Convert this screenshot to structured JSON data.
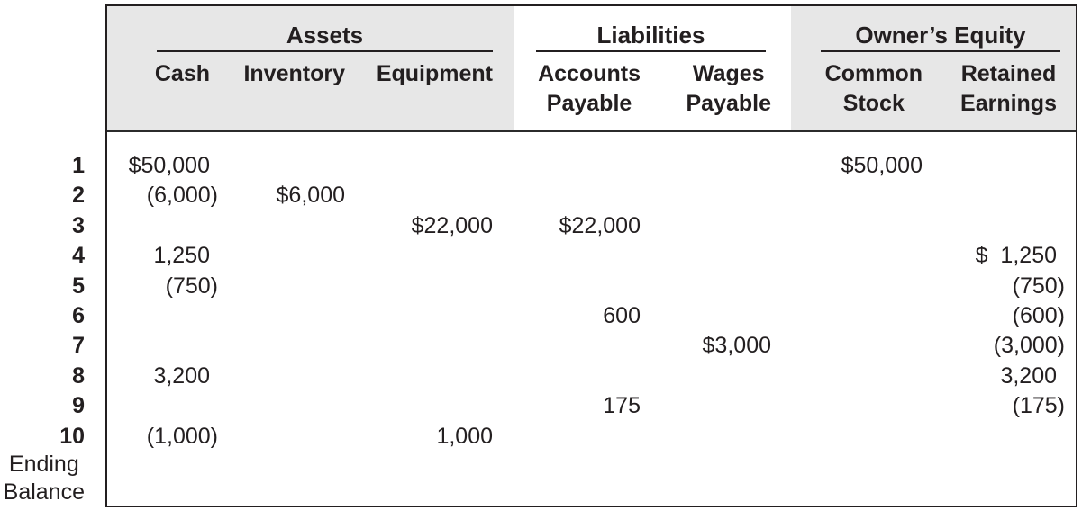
{
  "figure": {
    "groups": [
      {
        "label": "Assets",
        "columns": [
          {
            "key": "cash",
            "label": "Cash"
          },
          {
            "key": "inventory",
            "label": "Inventory"
          },
          {
            "key": "equipment",
            "label": "Equipment"
          }
        ]
      },
      {
        "label": "Liabilities",
        "columns": [
          {
            "key": "accounts_payable",
            "label": "Accounts\nPayable"
          },
          {
            "key": "wages_payable",
            "label": "Wages\nPayable"
          }
        ]
      },
      {
        "label": "Owner’s Equity",
        "columns": [
          {
            "key": "common_stock",
            "label": "Common\nStock"
          },
          {
            "key": "retained_earnings",
            "label": "Retained\nEarnings"
          }
        ]
      }
    ],
    "rows": [
      {
        "label": "1",
        "cells": {
          "cash": "$50,000",
          "common_stock": "$50,000"
        }
      },
      {
        "label": "2",
        "cells": {
          "cash": "(6,000)",
          "inventory": "$6,000"
        }
      },
      {
        "label": "3",
        "cells": {
          "equipment": "$22,000",
          "accounts_payable": "$22,000"
        }
      },
      {
        "label": "4",
        "cells": {
          "cash": "1,250",
          "retained_earnings": "$  1,250"
        }
      },
      {
        "label": "5",
        "cells": {
          "cash": "(750)",
          "retained_earnings": "(750)"
        }
      },
      {
        "label": "6",
        "cells": {
          "accounts_payable": "600",
          "retained_earnings": "(600)"
        }
      },
      {
        "label": "7",
        "cells": {
          "wages_payable": "$3,000",
          "retained_earnings": "(3,000)"
        }
      },
      {
        "label": "8",
        "cells": {
          "cash": "3,200",
          "retained_earnings": "3,200"
        }
      },
      {
        "label": "9",
        "cells": {
          "accounts_payable": "175",
          "retained_earnings": "(175)"
        }
      },
      {
        "label": "10",
        "cells": {
          "cash": "(1,000)",
          "equipment": "1,000"
        }
      }
    ],
    "ending_balance_label": "Ending\nBalance",
    "colors": {
      "header_bg": "#e7e7e7",
      "ink": "#231f20"
    }
  }
}
